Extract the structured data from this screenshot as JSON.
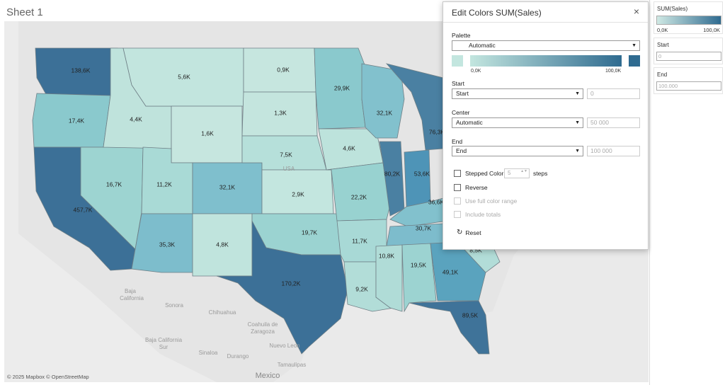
{
  "sheet": {
    "title": "Sheet 1"
  },
  "map": {
    "credit": "© 2025 Mapbox © OpenStreetMap",
    "geo_labels": {
      "baja": "Baja",
      "california": "California",
      "sonora": "Sonora",
      "chihuahua": "Chihuahua",
      "coahuila": "Coahuila de",
      "zaragoza": "Zaragoza",
      "baja2": "Baja California",
      "sur": "Sur",
      "sinaloa": "Sinaloa",
      "durango": "Durango",
      "nuevo_leon": "Nuevo Leon",
      "tamaulipas": "Tamaulipas",
      "mexico": "Mexico",
      "usa": "USA"
    },
    "states": {
      "wa": "138,6K",
      "or": "17,4K",
      "ca": "457,7K",
      "nv": "16,7K",
      "id": "4,4K",
      "mt": "5,6K",
      "wy": "1,6K",
      "ut": "11,2K",
      "az": "35,3K",
      "co": "32,1K",
      "nm": "4,8K",
      "nd": "0,9K",
      "sd": "1,3K",
      "ne": "7,5K",
      "ks": "2,9K",
      "ok": "19,7K",
      "tx": "170,2K",
      "mn": "29,9K",
      "ia": "4,6K",
      "mo": "22,2K",
      "ar": "11,7K",
      "la": "9,2K",
      "wi": "32,1K",
      "il": "80,2K",
      "in": "53,6K",
      "mi": "76,3K",
      "ms": "10,8K",
      "al": "19,5K",
      "tn": "30,7K",
      "ky": "36,6K",
      "ga": "49,1K",
      "sc": "8,5K",
      "fl": "89,5K"
    }
  },
  "dialog": {
    "title": "Edit Colors SUM(Sales)",
    "close_icon": "×",
    "palette_label": "Palette",
    "palette_value": "Automatic",
    "ramp_min": "0,0K",
    "ramp_max": "100,0K",
    "start_label": "Start",
    "start_value": "Start",
    "start_number": "0",
    "center_label": "Center",
    "center_value": "Automatic",
    "center_number": "50 000",
    "end_label": "End",
    "end_value": "End",
    "end_number": "100 000",
    "stepped_label": "Stepped Color",
    "steps_value": "5",
    "steps_label": "steps",
    "reverse_label": "Reverse",
    "full_range_label": "Use full color range",
    "include_totals_label": "Include totals",
    "reset_label": "Reset",
    "reset_icon": "↻",
    "dropdown_arrow": "▼",
    "stepper_arrows": "▲▼"
  },
  "colors": {
    "low": "#c3e6df",
    "high": "#2f6b90",
    "accent": "#2f6b90"
  },
  "legend": {
    "title": "SUM(Sales)",
    "min": "0,0K",
    "max": "100,0K"
  },
  "start_card": {
    "title": "Start",
    "value": "0"
  },
  "end_card": {
    "title": "End",
    "value": "100.000"
  }
}
